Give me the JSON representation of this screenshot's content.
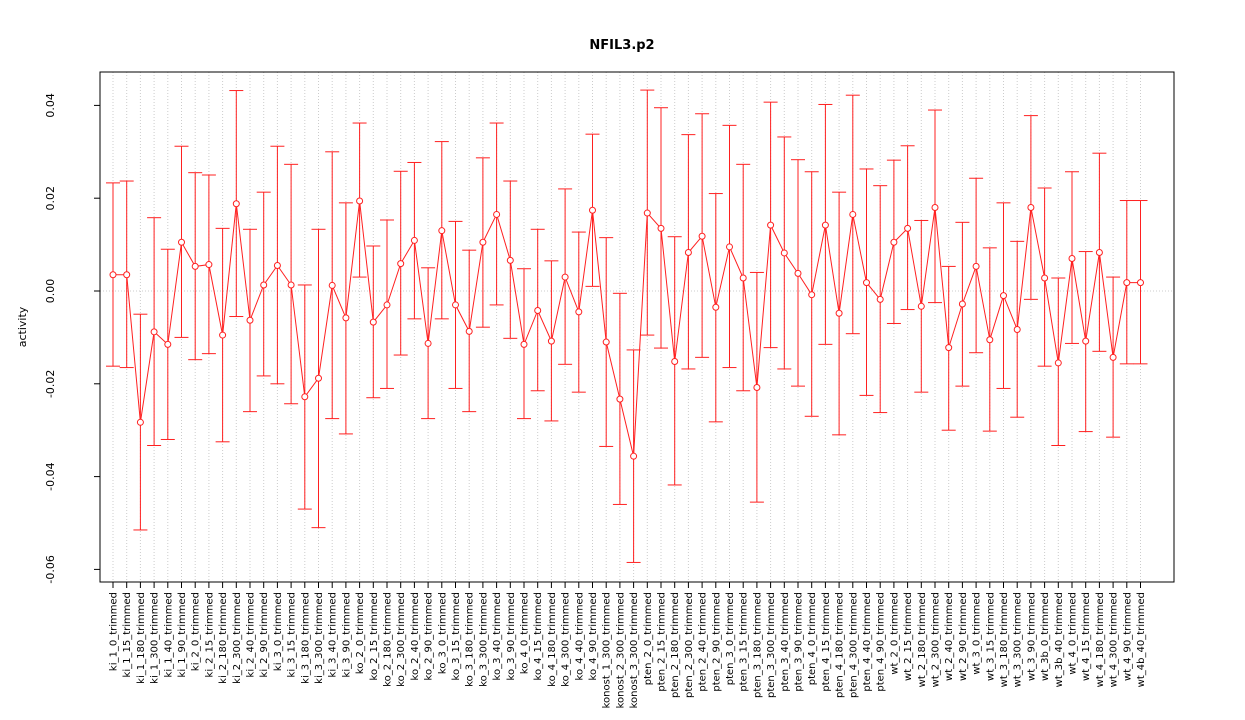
{
  "chart_data": {
    "type": "line",
    "title": "NFIL3.p2",
    "xlabel": "",
    "ylabel": "activity",
    "ylim": [
      -0.0635,
      0.047
    ],
    "yticks": [
      -0.06,
      -0.04,
      -0.02,
      0.0,
      0.02,
      0.04
    ],
    "ytick_labels": [
      "-0.06",
      "-0.04",
      "-0.02",
      "0.00",
      "0.02",
      "0.04"
    ],
    "grid": true,
    "reference_line": 0.0,
    "colors": {
      "series": "#ff2020",
      "grid": "#cccccc",
      "axis": "#000000"
    },
    "categories": [
      "ki_1_0_trimmed",
      "ki_1_15_trimmed",
      "ki_1_180_trimmed",
      "ki_1_300_trimmed",
      "ki_1_40_trimmed",
      "ki_1_90_trimmed",
      "ki_2_0_trimmed",
      "ki_2_15_trimmed",
      "ki_2_180_trimmed",
      "ki_2_300_trimmed",
      "ki_2_40_trimmed",
      "ki_2_90_trimmed",
      "ki_3_0_trimmed",
      "ki_3_15_trimmed",
      "ki_3_180_trimmed",
      "ki_3_300_trimmed",
      "ki_3_40_trimmed",
      "ki_3_90_trimmed",
      "ko_2_0_trimmed",
      "ko_2_15_trimmed",
      "ko_2_180_trimmed",
      "ko_2_300_trimmed",
      "ko_2_40_trimmed",
      "ko_2_90_trimmed",
      "ko_3_0_trimmed",
      "ko_3_15_trimmed",
      "ko_3_180_trimmed",
      "ko_3_300_trimmed",
      "ko_3_40_trimmed",
      "ko_3_90_trimmed",
      "ko_4_0_trimmed",
      "ko_4_15_trimmed",
      "ko_4_180_trimmed",
      "ko_4_300_trimmed",
      "ko_4_40_trimmed",
      "ko_4_90_trimmed",
      "konost_1_300_trimmed",
      "konost_2_300_trimmed",
      "konost_3_300_trimmed",
      "pten_2_0_trimmed",
      "pten_2_15_trimmed",
      "pten_2_180_trimmed",
      "pten_2_300_trimmed",
      "pten_2_40_trimmed",
      "pten_2_90_trimmed",
      "pten_3_0_trimmed",
      "pten_3_15_trimmed",
      "pten_3_180_trimmed",
      "pten_3_300_trimmed",
      "pten_3_40_trimmed",
      "pten_3_90_trimmed",
      "pten_4_0_trimmed",
      "pten_4_15_trimmed",
      "pten_4_180_trimmed",
      "pten_4_300_trimmed",
      "pten_4_40_trimmed",
      "pten_4_90_trimmed",
      "wt_2_0_trimmed",
      "wt_2_15_trimmed",
      "wt_2_180_trimmed",
      "wt_2_300_trimmed",
      "wt_2_40_trimmed",
      "wt_2_90_trimmed",
      "wt_3_0_trimmed",
      "wt_3_15_trimmed",
      "wt_3_180_trimmed",
      "wt_3_300_trimmed",
      "wt_3_90_trimmed",
      "wt_3b_0_trimmed",
      "wt_3b_40_trimmed",
      "wt_4_0_trimmed",
      "wt_4_15_trimmed",
      "wt_4_180_trimmed",
      "wt_4_300_trimmed",
      "wt_4_90_trimmed",
      "wt_4b_40_trimmed"
    ],
    "values": [
      0.0035,
      0.0035,
      -0.0283,
      -0.0088,
      -0.0115,
      0.0105,
      0.0053,
      0.0057,
      -0.0095,
      0.0188,
      -0.0063,
      0.0013,
      0.0055,
      0.0013,
      -0.0228,
      -0.0188,
      0.0012,
      -0.0058,
      0.0194,
      -0.0067,
      -0.003,
      0.0059,
      0.0109,
      -0.0113,
      0.013,
      -0.003,
      -0.0087,
      0.0105,
      0.0165,
      0.0066,
      -0.0115,
      -0.0042,
      -0.0108,
      0.003,
      -0.0045,
      0.0174,
      -0.011,
      -0.0233,
      -0.0356,
      0.0168,
      0.0135,
      -0.0152,
      0.0083,
      0.0118,
      -0.0035,
      0.0095,
      0.0028,
      -0.0208,
      0.0142,
      0.0082,
      0.0038,
      -0.0008,
      0.0142,
      -0.0048,
      0.0165,
      0.0018,
      -0.0018,
      0.0105,
      0.0135,
      -0.0033,
      0.018,
      -0.0122,
      -0.0028,
      0.0053,
      -0.0105,
      -0.001,
      -0.0083,
      0.018,
      0.0028,
      -0.0155,
      0.007,
      -0.0108,
      0.0083,
      -0.0143,
      0.0018,
      0.0018
    ],
    "lower": [
      -0.0162,
      -0.0165,
      -0.0515,
      -0.0333,
      -0.032,
      -0.01,
      -0.0148,
      -0.0135,
      -0.0325,
      -0.0055,
      -0.026,
      -0.0183,
      -0.02,
      -0.0243,
      -0.047,
      -0.051,
      -0.0275,
      -0.0308,
      0.003,
      -0.023,
      -0.021,
      -0.0138,
      -0.006,
      -0.0275,
      -0.006,
      -0.021,
      -0.026,
      -0.0078,
      -0.003,
      -0.0102,
      -0.0275,
      -0.0215,
      -0.028,
      -0.0158,
      -0.0218,
      0.001,
      -0.0335,
      -0.046,
      -0.0585,
      -0.0095,
      -0.0123,
      -0.0418,
      -0.0168,
      -0.0143,
      -0.0282,
      -0.0165,
      -0.0215,
      -0.0455,
      -0.0122,
      -0.0168,
      -0.0205,
      -0.027,
      -0.0115,
      -0.031,
      -0.0092,
      -0.0225,
      -0.0262,
      -0.007,
      -0.004,
      -0.0218,
      -0.0025,
      -0.03,
      -0.0205,
      -0.0133,
      -0.0302,
      -0.021,
      -0.0272,
      -0.0018,
      -0.0162,
      -0.0333,
      -0.0113,
      -0.0303,
      -0.013,
      -0.0315,
      -0.0157,
      -0.0157
    ],
    "upper": [
      0.0233,
      0.0237,
      -0.005,
      0.0158,
      0.009,
      0.0312,
      0.0255,
      0.025,
      0.0135,
      0.0432,
      0.0133,
      0.0213,
      0.0312,
      0.0273,
      0.0013,
      0.0133,
      0.03,
      0.019,
      0.0362,
      0.0097,
      0.0153,
      0.0258,
      0.0277,
      0.005,
      0.0322,
      0.015,
      0.0088,
      0.0287,
      0.0362,
      0.0237,
      0.0048,
      0.0133,
      0.0065,
      0.022,
      0.0127,
      0.0338,
      0.0115,
      -0.0005,
      -0.0127,
      0.0433,
      0.0395,
      0.0117,
      0.0337,
      0.0382,
      0.021,
      0.0357,
      0.0273,
      0.004,
      0.0407,
      0.0332,
      0.0283,
      0.0257,
      0.0402,
      0.0213,
      0.0422,
      0.0263,
      0.0227,
      0.0282,
      0.0313,
      0.0152,
      0.039,
      0.0053,
      0.0148,
      0.0243,
      0.0093,
      0.019,
      0.0107,
      0.0378,
      0.0222,
      0.0028,
      0.0257,
      0.0085,
      0.0297,
      0.003,
      0.0195,
      0.0195
    ]
  }
}
